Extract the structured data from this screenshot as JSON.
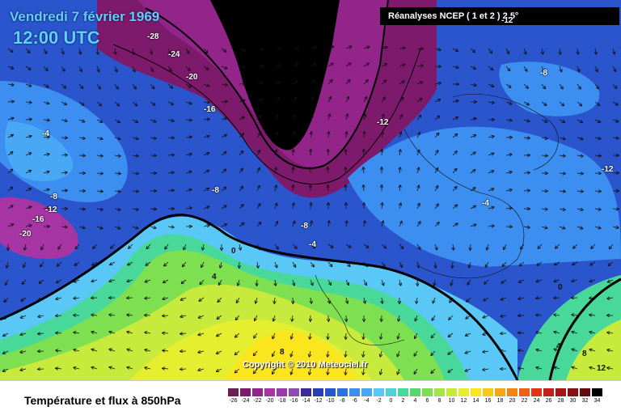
{
  "header": {
    "date": "Vendredi 7 février 1969",
    "time": "12:00 UTC",
    "source": "Réanalyses NCEP ( 1 et 2 ) 2.5°"
  },
  "copyright": "Copyright © 2010 Meteociel.fr",
  "caption": "Température et flux à 850hPa",
  "isotherm_labels": [
    "-28",
    "-24",
    "-20",
    "-16",
    "-12",
    "-8",
    "-4",
    "0",
    "4",
    "8",
    "12",
    "-16",
    "-20",
    "-8",
    "-12",
    "-4",
    "-8",
    "-4",
    "0",
    "4",
    "8",
    "-12",
    "-12",
    "-8"
  ],
  "scale": {
    "values": [
      "-26",
      "-24",
      "-22",
      "-20",
      "-18",
      "-16",
      "-14",
      "-12",
      "-10",
      "-8",
      "-6",
      "-4",
      "-2",
      "0",
      "2",
      "4",
      "6",
      "8",
      "10",
      "12",
      "14",
      "16",
      "18",
      "20",
      "22",
      "24",
      "26",
      "28",
      "30",
      "32",
      "34"
    ],
    "colors": [
      "#6a1e52",
      "#7e1a6b",
      "#92248a",
      "#a735a4",
      "#9b3aa8",
      "#8f4bb4",
      "#3c2a9a",
      "#2a3bb4",
      "#2b55cc",
      "#2f6fe0",
      "#3c8ef0",
      "#48a8f5",
      "#5ac8f6",
      "#4ed2d2",
      "#48d89a",
      "#56d86a",
      "#7ee050",
      "#a5e44a",
      "#c8ea3c",
      "#e6ee30",
      "#fae51e",
      "#f8c81a",
      "#f5a618",
      "#f28416",
      "#ef5f15",
      "#e03616",
      "#c41e1e",
      "#a5151a",
      "#861016",
      "#660a12",
      "#000000"
    ]
  }
}
